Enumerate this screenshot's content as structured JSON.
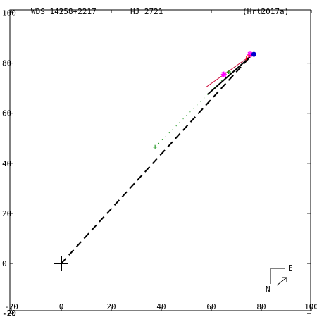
{
  "header": {
    "wds": "WDS 14258+2217",
    "name": "HJ 2721",
    "ref": "(Hrt2017a)"
  },
  "compass": {
    "east": "E",
    "north": "N"
  },
  "chart_data": {
    "type": "scatter",
    "title": "WDS 14258+2217   HJ 2721",
    "xlim": [
      -20,
      100
    ],
    "ylim": [
      -20,
      100
    ],
    "xticks": [
      -20,
      0,
      20,
      40,
      60,
      80,
      100
    ],
    "yticks": [
      -20,
      0,
      20,
      40,
      60,
      80,
      100
    ],
    "extra_y_label": "-20",
    "primary": [
      0,
      0
    ],
    "dashed_orbit": [
      [
        0,
        0
      ],
      [
        75.5,
        82.5
      ]
    ],
    "solid_segment": [
      [
        58.5,
        67.5
      ],
      [
        75.5,
        82.5
      ]
    ],
    "dotted_segment": [
      [
        37.5,
        46.5
      ],
      [
        70.5,
        79.5
      ]
    ],
    "orbit_end_line": [
      [
        58.0,
        70.5
      ],
      [
        75.5,
        82.8
      ]
    ],
    "observations": [
      {
        "marker": "plus",
        "color": "#008800",
        "x": 37.5,
        "y": 46.5
      },
      {
        "marker": "plus",
        "color": "#008800",
        "x": 67,
        "y": 76.5
      },
      {
        "marker": "asterisk",
        "color": "#ff00ff",
        "x": 65,
        "y": 75.5
      },
      {
        "marker": "asterisk",
        "color": "#ff00ff",
        "x": 75.5,
        "y": 83.5
      },
      {
        "marker": "plus",
        "color": "#ff0000",
        "x": 74,
        "y": 82
      },
      {
        "marker": "plus",
        "color": "#ff0000",
        "x": 75,
        "y": 83
      },
      {
        "marker": "dot",
        "color": "#0000cc",
        "x": 77,
        "y": 83.5
      }
    ]
  }
}
